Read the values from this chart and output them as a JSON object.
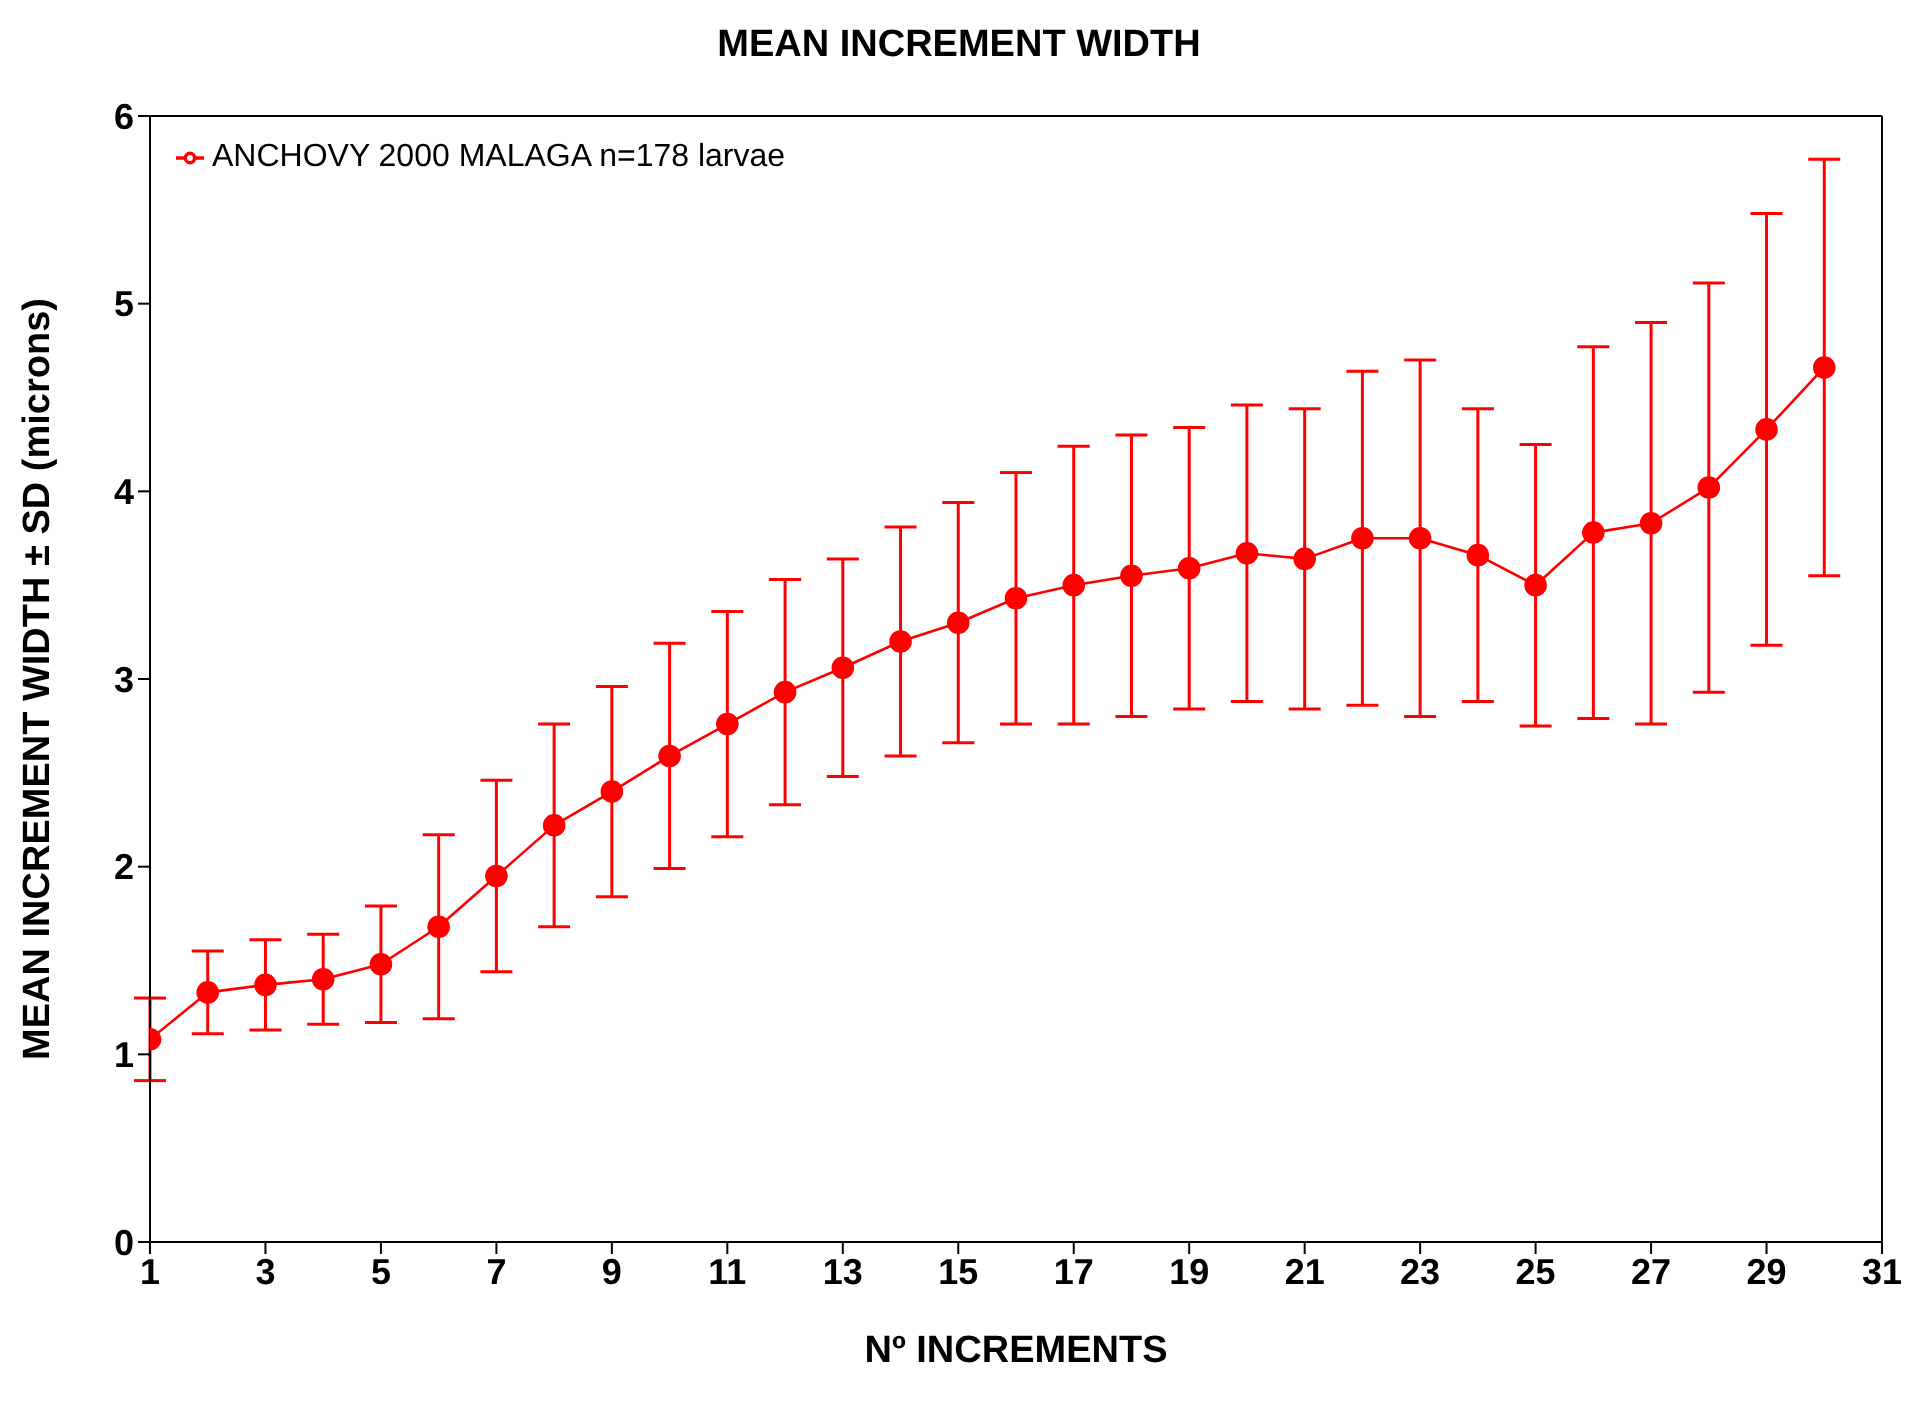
{
  "chart_data": {
    "type": "line",
    "title": "MEAN INCREMENT WIDTH",
    "xlabel": "Nº INCREMENTS",
    "ylabel": "MEAN INCREMENT WIDTH ± SD (microns)",
    "x": [
      1,
      2,
      3,
      4,
      5,
      6,
      7,
      8,
      9,
      10,
      11,
      12,
      13,
      14,
      15,
      16,
      17,
      18,
      19,
      20,
      21,
      22,
      23,
      24,
      25,
      26,
      27,
      28,
      29,
      30
    ],
    "series": [
      {
        "name": "ANCHOVY 2000 MALAGA n=178 larvae",
        "color": "#ff0000",
        "values": [
          1.08,
          1.33,
          1.37,
          1.4,
          1.48,
          1.68,
          1.95,
          2.22,
          2.4,
          2.59,
          2.76,
          2.93,
          3.06,
          3.2,
          3.3,
          3.43,
          3.5,
          3.55,
          3.59,
          3.67,
          3.64,
          3.75,
          3.75,
          3.66,
          3.5,
          3.78,
          3.83,
          4.02,
          4.33,
          4.66
        ],
        "errors": [
          0.22,
          0.22,
          0.24,
          0.24,
          0.31,
          0.49,
          0.51,
          0.54,
          0.56,
          0.6,
          0.6,
          0.6,
          0.58,
          0.61,
          0.64,
          0.67,
          0.74,
          0.75,
          0.75,
          0.79,
          0.8,
          0.89,
          0.95,
          0.78,
          0.75,
          0.99,
          1.07,
          1.09,
          1.15,
          1.11
        ]
      }
    ],
    "xlim": [
      1,
      31
    ],
    "xticks": [
      1,
      3,
      5,
      7,
      9,
      11,
      13,
      15,
      17,
      19,
      21,
      23,
      25,
      27,
      29,
      31
    ],
    "ylim": [
      0,
      6
    ],
    "yticks": [
      0,
      1,
      2,
      3,
      4,
      5,
      6
    ],
    "grid": false,
    "legend": "top left",
    "marker": "circle",
    "line_style": "solid"
  }
}
